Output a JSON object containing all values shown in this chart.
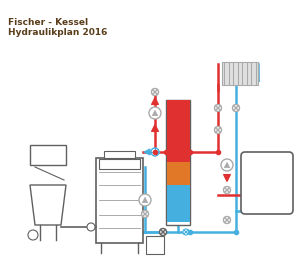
{
  "title_line1": "Fischer - Kessel",
  "title_line2": "Hydraulikplan 2016",
  "title_color": "#5a3e1b",
  "title_fontsize": 6.5,
  "bg_color": "#ffffff",
  "red": "#e03030",
  "blue": "#45b0e0",
  "orange": "#e07828",
  "gray": "#aaaaaa",
  "dark_gray": "#606060",
  "figsize": [
    3.0,
    2.79
  ],
  "dpi": 100
}
